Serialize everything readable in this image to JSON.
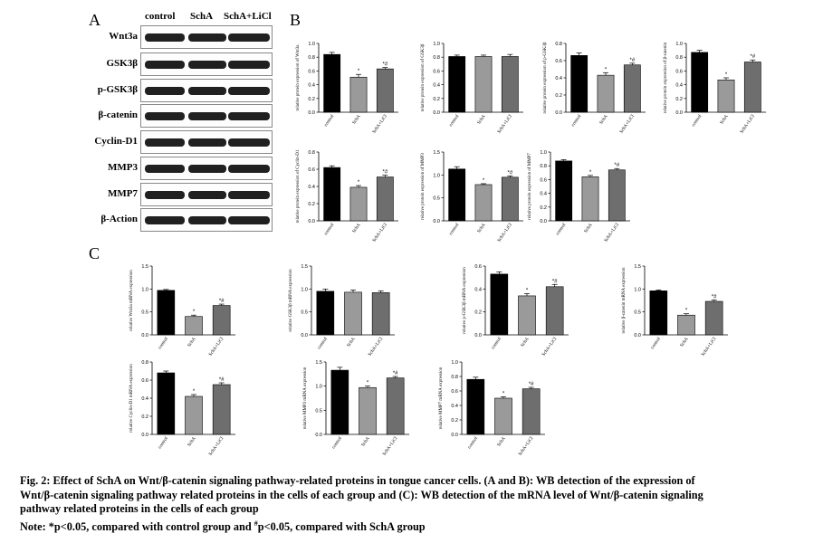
{
  "panels": {
    "a": "A",
    "b": "B",
    "c": "C"
  },
  "wb": {
    "groups": [
      "control",
      "SchA",
      "SchA+LiCl"
    ],
    "proteins": [
      "Wnt3a",
      "GSK3β",
      "p-GSK3β",
      "β-catenin",
      "Cyclin-D1",
      "MMP3",
      "MMP7",
      "β-Action"
    ]
  },
  "bar_colors": [
    "#000000",
    "#9a9a9a",
    "#6e6e6e"
  ],
  "chart_data": [
    {
      "type": "bar",
      "panel": "B",
      "ylabel": "relative protein expression of Wnt3a",
      "categories": [
        "control",
        "SchA",
        "SchA+LiCl"
      ],
      "values": [
        0.84,
        0.51,
        0.63
      ],
      "errors": [
        0.03,
        0.04,
        0.02
      ],
      "sig": [
        "",
        "*",
        "*#"
      ],
      "ylim": [
        0,
        1.0
      ],
      "yticks": [
        "0.0",
        "0.2",
        "0.4",
        "0.6",
        "0.8",
        "1.0"
      ]
    },
    {
      "type": "bar",
      "panel": "B",
      "ylabel": "relative protein expression of GSK3β",
      "categories": [
        "control",
        "SchA",
        "SchA+LiCl"
      ],
      "values": [
        0.81,
        0.81,
        0.81
      ],
      "errors": [
        0.02,
        0.02,
        0.03
      ],
      "sig": [
        "",
        "",
        ""
      ],
      "ylim": [
        0,
        1.0
      ],
      "yticks": [
        "0.0",
        "0.2",
        "0.4",
        "0.6",
        "0.8",
        "1.0"
      ]
    },
    {
      "type": "bar",
      "panel": "B",
      "ylabel": "relative protein expression of p-GSK3β",
      "categories": [
        "control",
        "SchA",
        "SchA+LiCl"
      ],
      "values": [
        0.66,
        0.43,
        0.55
      ],
      "errors": [
        0.03,
        0.03,
        0.02
      ],
      "sig": [
        "",
        "*",
        "*#"
      ],
      "ylim": [
        0,
        0.8
      ],
      "yticks": [
        "0.0",
        "0.2",
        "0.4",
        "0.6",
        "0.8"
      ]
    },
    {
      "type": "bar",
      "panel": "B",
      "ylabel": "relative protein expression of β-catenin",
      "categories": [
        "control",
        "SchA",
        "SchA+LiCl"
      ],
      "values": [
        0.87,
        0.47,
        0.73
      ],
      "errors": [
        0.03,
        0.03,
        0.03
      ],
      "sig": [
        "",
        "*",
        "*#"
      ],
      "ylim": [
        0,
        1.0
      ],
      "yticks": [
        "0.0",
        "0.2",
        "0.4",
        "0.6",
        "0.8",
        "1.0"
      ]
    },
    {
      "type": "bar",
      "panel": "B",
      "ylabel": "relative protein expression of Cyclin-D1",
      "categories": [
        "control",
        "SchA",
        "SchA+LiCl"
      ],
      "values": [
        0.62,
        0.39,
        0.51
      ],
      "errors": [
        0.02,
        0.02,
        0.02
      ],
      "sig": [
        "",
        "*",
        "*#"
      ],
      "ylim": [
        0,
        0.8
      ],
      "yticks": [
        "0.0",
        "0.2",
        "0.4",
        "0.6",
        "0.8"
      ]
    },
    {
      "type": "bar",
      "panel": "B",
      "ylabel": "relative protein expression of MMP3",
      "categories": [
        "control",
        "SchA",
        "SchA+LiCl"
      ],
      "values": [
        1.13,
        0.79,
        0.95
      ],
      "errors": [
        0.05,
        0.02,
        0.03
      ],
      "sig": [
        "",
        "*",
        "*#"
      ],
      "ylim": [
        0,
        1.5
      ],
      "yticks": [
        "0.0",
        "0.5",
        "1.0",
        "1.5"
      ]
    },
    {
      "type": "bar",
      "panel": "B",
      "ylabel": "relative protein expression of MMP7",
      "categories": [
        "control",
        "SchA",
        "SchA+LiCl"
      ],
      "values": [
        0.87,
        0.64,
        0.74
      ],
      "errors": [
        0.02,
        0.02,
        0.02
      ],
      "sig": [
        "",
        "*",
        "*#"
      ],
      "ylim": [
        0,
        1.0
      ],
      "yticks": [
        "0.0",
        "0.2",
        "0.4",
        "0.6",
        "0.8",
        "1.0"
      ]
    },
    {
      "type": "bar",
      "panel": "C",
      "ylabel": "relative Wnt3a mRNA expression",
      "categories": [
        "control",
        "SchA",
        "SchA+LiCl"
      ],
      "values": [
        0.97,
        0.4,
        0.64
      ],
      "errors": [
        0.02,
        0.03,
        0.03
      ],
      "sig": [
        "",
        "*",
        "*#"
      ],
      "ylim": [
        0,
        1.5
      ],
      "yticks": [
        "0.0",
        "0.5",
        "1.0",
        "1.5"
      ]
    },
    {
      "type": "bar",
      "panel": "C",
      "ylabel": "relative GSK3β mRNA expression",
      "categories": [
        "control",
        "SchA",
        "SchA+LiCl"
      ],
      "values": [
        0.95,
        0.93,
        0.92
      ],
      "errors": [
        0.05,
        0.05,
        0.04
      ],
      "sig": [
        "",
        "",
        ""
      ],
      "ylim": [
        0,
        1.5
      ],
      "yticks": [
        "0.0",
        "0.5",
        "1.0",
        "1.5"
      ]
    },
    {
      "type": "bar",
      "panel": "C",
      "ylabel": "relative p-GSK3β mRNA expression",
      "categories": [
        "control",
        "SchA",
        "SchA+LiCl"
      ],
      "values": [
        0.53,
        0.34,
        0.42
      ],
      "errors": [
        0.02,
        0.02,
        0.02
      ],
      "sig": [
        "",
        "*",
        "*#"
      ],
      "ylim": [
        0,
        0.6
      ],
      "yticks": [
        "0.0",
        "0.2",
        "0.4",
        "0.6"
      ]
    },
    {
      "type": "bar",
      "panel": "C",
      "ylabel": "relative β-catenin mRNA expression",
      "categories": [
        "control",
        "SchA",
        "SchA+LiCl"
      ],
      "values": [
        0.96,
        0.43,
        0.73
      ],
      "errors": [
        0.02,
        0.03,
        0.03
      ],
      "sig": [
        "",
        "*",
        "*#"
      ],
      "ylim": [
        0,
        1.5
      ],
      "yticks": [
        "0.0",
        "0.5",
        "1.0",
        "1.5"
      ]
    },
    {
      "type": "bar",
      "panel": "C",
      "ylabel": "relative Cyclin-D1 mRNA expression",
      "categories": [
        "control",
        "SchA",
        "SchA+LiCl"
      ],
      "values": [
        0.68,
        0.42,
        0.55
      ],
      "errors": [
        0.02,
        0.02,
        0.02
      ],
      "sig": [
        "",
        "*",
        "*#"
      ],
      "ylim": [
        0,
        0.8
      ],
      "yticks": [
        "0.0",
        "0.2",
        "0.4",
        "0.6",
        "0.8"
      ]
    },
    {
      "type": "bar",
      "panel": "C",
      "ylabel": "relative MMP3 mRNA expression",
      "categories": [
        "control",
        "SchA",
        "SchA+LiCl"
      ],
      "values": [
        1.33,
        0.97,
        1.17
      ],
      "errors": [
        0.06,
        0.03,
        0.03
      ],
      "sig": [
        "",
        "*",
        "*#"
      ],
      "ylim": [
        0,
        1.5
      ],
      "yticks": [
        "0.0",
        "0.5",
        "1.0",
        "1.5"
      ]
    },
    {
      "type": "bar",
      "panel": "C",
      "ylabel": "relative MMP7 mRNA expression",
      "categories": [
        "control",
        "SchA",
        "SchA+LiCl"
      ],
      "values": [
        0.76,
        0.5,
        0.63
      ],
      "errors": [
        0.03,
        0.02,
        0.02
      ],
      "sig": [
        "",
        "*",
        "*#"
      ],
      "ylim": [
        0,
        1.0
      ],
      "yticks": [
        "0.0",
        "0.2",
        "0.4",
        "0.6",
        "0.8",
        "1.0"
      ]
    }
  ],
  "caption": {
    "line1": "Fig. 2: Effect of SchA on Wnt/β-catenin signaling pathway-related proteins in tongue cancer cells. (A and B): WB detection of the expression of",
    "line2": "Wnt/β-catenin signaling pathway related proteins in the cells of each group and (C): WB detection of the mRNA level of Wnt/β-catenin signaling",
    "line3": "pathway related proteins in the cells of each group",
    "note_prefix": "Note: *p<0.05, compared with control group and ",
    "note_mark": "#",
    "note_suffix": "p<0.05, compared with SchA group"
  }
}
